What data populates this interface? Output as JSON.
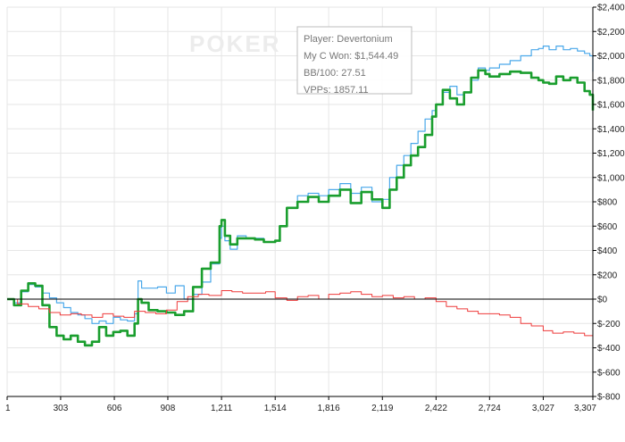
{
  "watermark": "POKER",
  "tooltip": {
    "player": "Player: Devertonium",
    "won": "My C Won: $1,544.49",
    "bb100": "BB/100: 27.51",
    "vpps": "VPPs: 1857.11"
  },
  "chart_data": {
    "type": "line",
    "x_ticks": [
      1,
      303,
      606,
      908,
      1211,
      1514,
      1816,
      2119,
      2422,
      2724,
      3027,
      3307
    ],
    "x_tick_labels": [
      "1",
      "303",
      "606",
      "908",
      "1,211",
      "1,514",
      "1,816",
      "2,119",
      "2,422",
      "2,724",
      "3,027",
      "3,307"
    ],
    "y_ticks": [
      -800,
      -600,
      -400,
      -200,
      0,
      200,
      400,
      600,
      800,
      1000,
      1200,
      1400,
      1600,
      1800,
      2000,
      2200,
      2400
    ],
    "y_tick_labels": [
      "$-800",
      "$-600",
      "$-400",
      "$-200",
      "$0",
      "$200",
      "$400",
      "$600",
      "$800",
      "$1,000",
      "$1,200",
      "$1,400",
      "$1,600",
      "$1,800",
      "$2,000",
      "$2,200",
      "$2,400"
    ],
    "xlim": [
      1,
      3307
    ],
    "ylim": [
      -800,
      2400
    ],
    "grid": true,
    "y_axis_position": "right",
    "colors": {
      "green": "#1a9e2e",
      "blue": "#4aa8ea",
      "red": "#ee3a3a",
      "grid": "#e6e6e6",
      "axis": "#000000"
    },
    "series": [
      {
        "color": "#4aa8ea",
        "x": [
          1,
          40,
          80,
          120,
          160,
          200,
          240,
          280,
          320,
          360,
          400,
          440,
          480,
          520,
          560,
          600,
          640,
          680,
          720,
          740,
          760,
          800,
          850,
          900,
          950,
          1000,
          1050,
          1100,
          1150,
          1200,
          1211,
          1230,
          1260,
          1300,
          1350,
          1400,
          1450,
          1514,
          1540,
          1580,
          1640,
          1700,
          1760,
          1816,
          1880,
          1940,
          2000,
          2060,
          2119,
          2160,
          2200,
          2240,
          2280,
          2320,
          2360,
          2400,
          2422,
          2460,
          2500,
          2540,
          2580,
          2620,
          2660,
          2700,
          2724,
          2780,
          2840,
          2900,
          2960,
          3000,
          3027,
          3060,
          3100,
          3140,
          3180,
          3220,
          3260,
          3290,
          3307
        ],
        "y": [
          0,
          -30,
          60,
          120,
          100,
          50,
          10,
          -30,
          -70,
          -110,
          -130,
          -160,
          -200,
          -180,
          -200,
          -150,
          -170,
          -180,
          -120,
          150,
          90,
          90,
          100,
          50,
          110,
          0,
          40,
          140,
          290,
          500,
          600,
          480,
          410,
          520,
          500,
          500,
          470,
          480,
          600,
          750,
          850,
          870,
          850,
          900,
          950,
          870,
          920,
          800,
          820,
          1000,
          1100,
          1180,
          1280,
          1380,
          1480,
          1550,
          1600,
          1700,
          1750,
          1680,
          1700,
          1800,
          1900,
          1880,
          1900,
          1930,
          1960,
          2000,
          2050,
          2060,
          2080,
          2050,
          2080,
          2050,
          2060,
          2040,
          2020,
          2000,
          1870
        ]
      },
      {
        "color": "#1a9e2e",
        "x": [
          1,
          40,
          80,
          120,
          160,
          200,
          240,
          280,
          320,
          360,
          400,
          440,
          480,
          520,
          560,
          600,
          640,
          680,
          720,
          740,
          760,
          800,
          850,
          900,
          950,
          1000,
          1050,
          1100,
          1150,
          1200,
          1211,
          1230,
          1260,
          1300,
          1350,
          1400,
          1450,
          1514,
          1540,
          1580,
          1640,
          1700,
          1760,
          1816,
          1880,
          1940,
          2000,
          2060,
          2119,
          2160,
          2200,
          2240,
          2280,
          2320,
          2360,
          2400,
          2422,
          2460,
          2500,
          2540,
          2580,
          2620,
          2660,
          2700,
          2724,
          2780,
          2840,
          2900,
          2960,
          3000,
          3027,
          3060,
          3100,
          3140,
          3180,
          3220,
          3260,
          3290,
          3307
        ],
        "y": [
          0,
          -50,
          70,
          130,
          110,
          -50,
          -230,
          -300,
          -330,
          -300,
          -350,
          -380,
          -350,
          -230,
          -300,
          -270,
          -260,
          -300,
          -200,
          0,
          -30,
          -90,
          -100,
          -110,
          -130,
          -100,
          100,
          250,
          300,
          600,
          650,
          520,
          450,
          500,
          500,
          490,
          470,
          480,
          600,
          750,
          800,
          840,
          800,
          850,
          900,
          790,
          880,
          820,
          750,
          900,
          1000,
          1100,
          1180,
          1250,
          1350,
          1500,
          1600,
          1720,
          1650,
          1600,
          1700,
          1820,
          1880,
          1850,
          1830,
          1850,
          1870,
          1860,
          1820,
          1800,
          1780,
          1770,
          1830,
          1800,
          1820,
          1780,
          1710,
          1680,
          1550
        ]
      },
      {
        "color": "#ee3a3a",
        "x": [
          1,
          60,
          120,
          180,
          240,
          300,
          360,
          420,
          480,
          540,
          600,
          660,
          720,
          780,
          840,
          900,
          960,
          1020,
          1080,
          1140,
          1211,
          1270,
          1330,
          1400,
          1460,
          1514,
          1580,
          1640,
          1700,
          1760,
          1816,
          1880,
          1940,
          2000,
          2060,
          2119,
          2180,
          2240,
          2300,
          2360,
          2422,
          2480,
          2540,
          2600,
          2660,
          2724,
          2780,
          2840,
          2900,
          2960,
          3027,
          3080,
          3140,
          3200,
          3260,
          3307
        ],
        "y": [
          0,
          -40,
          -60,
          -80,
          -110,
          -130,
          -120,
          -130,
          -150,
          -120,
          -140,
          -150,
          -100,
          -110,
          -120,
          -90,
          -20,
          20,
          40,
          30,
          70,
          60,
          50,
          50,
          60,
          10,
          -10,
          20,
          30,
          0,
          40,
          50,
          60,
          40,
          20,
          30,
          10,
          20,
          0,
          10,
          -20,
          -60,
          -80,
          -100,
          -120,
          -120,
          -130,
          -150,
          -200,
          -220,
          -260,
          -280,
          -270,
          -280,
          -300,
          -330
        ]
      }
    ]
  }
}
